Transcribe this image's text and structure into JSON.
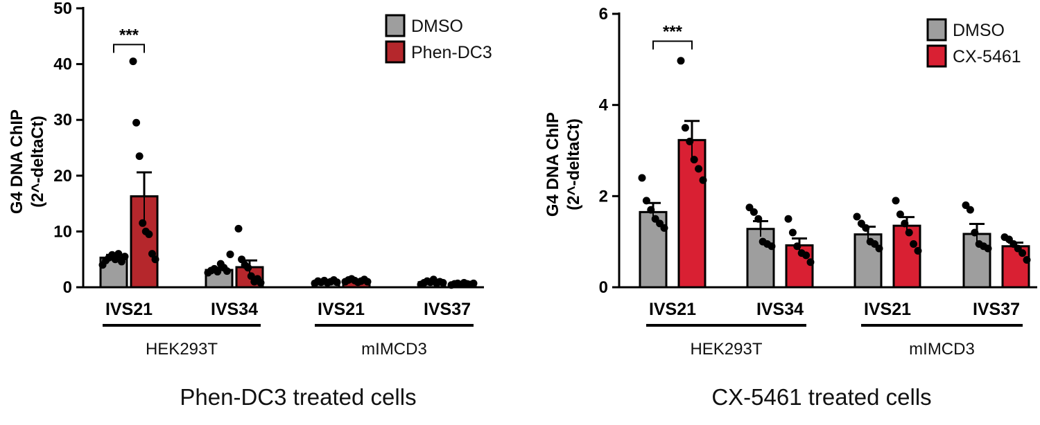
{
  "colors": {
    "control": "#9e9e9e",
    "treated_left": "#b5272c",
    "treated_right": "#d92033",
    "stroke": "#000000",
    "point": "#000000"
  },
  "captions": {
    "left": "Phen-DC3 treated cells",
    "right": "CX-5461 treated cells"
  },
  "chart_data": [
    {
      "type": "bar",
      "ylabel": [
        "G4 DNA ChIP",
        "(2^-deltaCt)"
      ],
      "ylim": [
        0,
        50
      ],
      "yticks": [
        0,
        10,
        20,
        30,
        40,
        50
      ],
      "categories": [
        "IVS21",
        "IVS34",
        "IVS21",
        "IVS37"
      ],
      "groups": [
        {
          "label": "HEK293T",
          "categories": [
            0,
            1
          ]
        },
        {
          "label": "mIMCD3",
          "categories": [
            2,
            3
          ]
        }
      ],
      "legend_position": "top-right",
      "series": [
        {
          "name": "DMSO",
          "color_key": "control",
          "values": [
            5.3,
            3.1,
            1.0,
            0.9
          ],
          "sem": [
            0.5,
            0.4,
            0.15,
            0.15
          ],
          "points": [
            [
              4.0,
              4.8,
              5.3,
              5.8,
              5.0,
              6.0,
              4.6,
              5.5
            ],
            [
              2.6,
              3.0,
              3.3,
              2.8,
              4.2,
              3.5,
              2.9,
              5.9
            ],
            [
              0.7,
              1.1,
              0.9,
              1.2,
              0.8,
              1.0,
              1.3,
              0.9
            ],
            [
              0.5,
              0.8,
              1.1,
              0.9,
              1.4,
              0.7,
              1.0,
              0.8
            ]
          ]
        },
        {
          "name": "Phen-DC3",
          "color_key": "treated_left",
          "values": [
            16.3,
            3.6,
            1.2,
            0.6
          ],
          "sem": [
            4.3,
            1.2,
            0.2,
            0.1
          ],
          "points": [
            [
              40.5,
              29.5,
              23.5,
              11.5,
              10.0,
              9.5,
              6.0,
              5.0
            ],
            [
              10.5,
              5.0,
              4.0,
              3.5,
              2.0,
              1.0,
              1.5,
              0.8
            ],
            [
              1.0,
              1.3,
              1.5,
              1.2,
              0.9,
              1.1,
              1.4,
              1.0
            ],
            [
              0.4,
              0.6,
              0.7,
              0.5,
              0.8,
              0.6,
              0.5,
              0.7
            ]
          ]
        }
      ],
      "significance": [
        {
          "category": 0,
          "label": "***",
          "y": 43.5
        }
      ]
    },
    {
      "type": "bar",
      "ylabel": [
        "G4 DNA ChIP",
        "(2^-deltaCt)"
      ],
      "ylim": [
        0,
        6
      ],
      "yticks": [
        0,
        2,
        4,
        6
      ],
      "categories": [
        "IVS21",
        "IVS34",
        "IVS21",
        "IVS37"
      ],
      "groups": [
        {
          "label": "HEK293T",
          "categories": [
            0,
            1
          ]
        },
        {
          "label": "mIMCD3",
          "categories": [
            2,
            3
          ]
        }
      ],
      "legend_position": "top-right",
      "series": [
        {
          "name": "DMSO",
          "color_key": "control",
          "values": [
            1.65,
            1.28,
            1.16,
            1.17
          ],
          "sem": [
            0.2,
            0.17,
            0.17,
            0.22
          ],
          "points": [
            [
              2.4,
              1.9,
              1.7,
              1.5,
              1.4,
              1.3
            ],
            [
              1.75,
              1.65,
              1.5,
              1.0,
              0.95,
              0.9
            ],
            [
              1.55,
              1.4,
              1.3,
              1.0,
              0.95,
              0.85
            ],
            [
              1.8,
              1.7,
              1.2,
              0.95,
              0.9,
              0.85
            ]
          ]
        },
        {
          "name": "CX-5461",
          "color_key": "treated_right",
          "values": [
            3.23,
            0.92,
            1.35,
            0.9
          ],
          "sem": [
            0.42,
            0.15,
            0.19,
            0.08
          ],
          "points": [
            [
              4.97,
              3.5,
              3.2,
              2.8,
              2.6,
              2.35
            ],
            [
              1.5,
              1.2,
              0.9,
              0.75,
              0.7,
              0.55
            ],
            [
              1.9,
              1.6,
              1.4,
              1.2,
              0.95,
              0.8
            ],
            [
              1.1,
              1.05,
              0.95,
              0.85,
              0.75,
              0.6
            ]
          ]
        }
      ],
      "significance": [
        {
          "category": 0,
          "label": "***",
          "y": 5.4
        }
      ]
    }
  ]
}
